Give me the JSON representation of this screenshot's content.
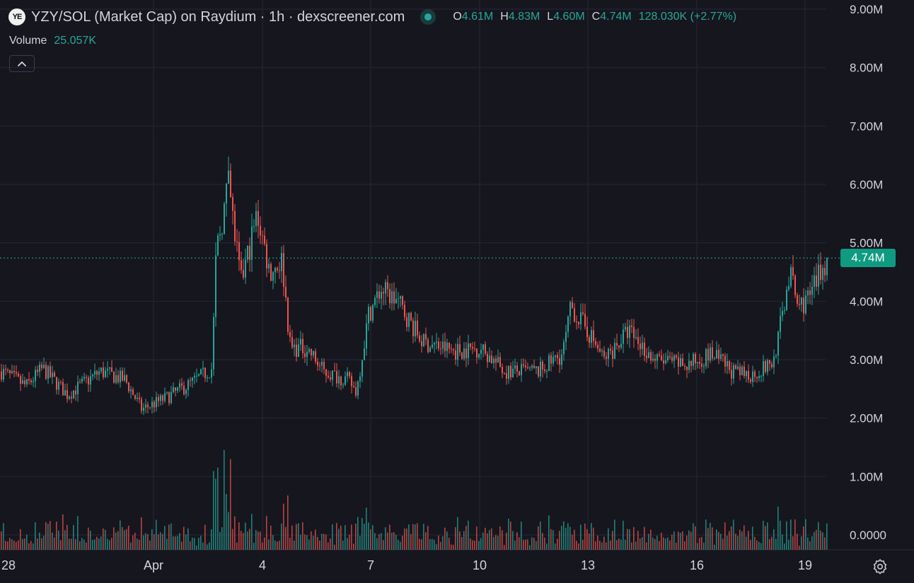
{
  "header": {
    "logo_text": "YE",
    "title": "YZY/SOL (Market Cap) on Raydium · 1h · dexscreener.com",
    "ohlc": [
      {
        "key": "O",
        "value": "4.61M"
      },
      {
        "key": "H",
        "value": "4.83M"
      },
      {
        "key": "L",
        "value": "4.60M"
      },
      {
        "key": "C",
        "value": "4.74M"
      }
    ],
    "change": "128.030K (+2.77%)"
  },
  "volume_legend": {
    "label": "Volume",
    "value": "25.057K"
  },
  "current_price_label": "4.74M",
  "colors": {
    "up": "#26a69a",
    "down": "#ef5350",
    "background": "#16171e",
    "grid": "#252731",
    "price_tag": "#0f9a82"
  },
  "icons": {
    "collapse": "chevron-up-icon",
    "settings": "gear-icon",
    "status": "live-status-dot-icon"
  },
  "chart_data": {
    "type": "candlestick",
    "y_tick_labels": [
      "9.00M",
      "8.00M",
      "7.00M",
      "6.00M",
      "5.00M",
      "4.00M",
      "3.00M",
      "2.00M",
      "1.00M",
      "0.0000"
    ],
    "ylim": [
      0,
      9000000
    ],
    "x_tick_labels": [
      "28",
      "Apr",
      "4",
      "7",
      "10",
      "13",
      "16",
      "19"
    ],
    "current_value": 4740000,
    "keypoints": [
      {
        "t": 0,
        "v": 2800000
      },
      {
        "t": 0.03,
        "v": 2550000
      },
      {
        "t": 0.05,
        "v": 2850000
      },
      {
        "t": 0.08,
        "v": 2400000
      },
      {
        "t": 0.12,
        "v": 2800000
      },
      {
        "t": 0.15,
        "v": 2650000
      },
      {
        "t": 0.17,
        "v": 2150000
      },
      {
        "t": 0.2,
        "v": 2350000
      },
      {
        "t": 0.23,
        "v": 2600000
      },
      {
        "t": 0.255,
        "v": 2850000
      },
      {
        "t": 0.26,
        "v": 4800000
      },
      {
        "t": 0.275,
        "v": 6000000
      },
      {
        "t": 0.29,
        "v": 4300000
      },
      {
        "t": 0.31,
        "v": 5500000
      },
      {
        "t": 0.325,
        "v": 4500000
      },
      {
        "t": 0.34,
        "v": 4700000
      },
      {
        "t": 0.35,
        "v": 3200000
      },
      {
        "t": 0.37,
        "v": 3200000
      },
      {
        "t": 0.39,
        "v": 2800000
      },
      {
        "t": 0.42,
        "v": 2650000
      },
      {
        "t": 0.43,
        "v": 2450000
      },
      {
        "t": 0.445,
        "v": 3800000
      },
      {
        "t": 0.46,
        "v": 4200000
      },
      {
        "t": 0.48,
        "v": 4000000
      },
      {
        "t": 0.51,
        "v": 3300000
      },
      {
        "t": 0.55,
        "v": 3150000
      },
      {
        "t": 0.58,
        "v": 3200000
      },
      {
        "t": 0.61,
        "v": 2800000
      },
      {
        "t": 0.65,
        "v": 2800000
      },
      {
        "t": 0.68,
        "v": 3100000
      },
      {
        "t": 0.69,
        "v": 3900000
      },
      {
        "t": 0.71,
        "v": 3500000
      },
      {
        "t": 0.73,
        "v": 3000000
      },
      {
        "t": 0.76,
        "v": 3500000
      },
      {
        "t": 0.79,
        "v": 3000000
      },
      {
        "t": 0.83,
        "v": 2900000
      },
      {
        "t": 0.86,
        "v": 3100000
      },
      {
        "t": 0.89,
        "v": 2750000
      },
      {
        "t": 0.91,
        "v": 2750000
      },
      {
        "t": 0.935,
        "v": 2950000
      },
      {
        "t": 0.945,
        "v": 3700000
      },
      {
        "t": 0.955,
        "v": 4500000
      },
      {
        "t": 0.965,
        "v": 3900000
      },
      {
        "t": 0.98,
        "v": 4100000
      },
      {
        "t": 1.0,
        "v": 4740000
      }
    ]
  }
}
